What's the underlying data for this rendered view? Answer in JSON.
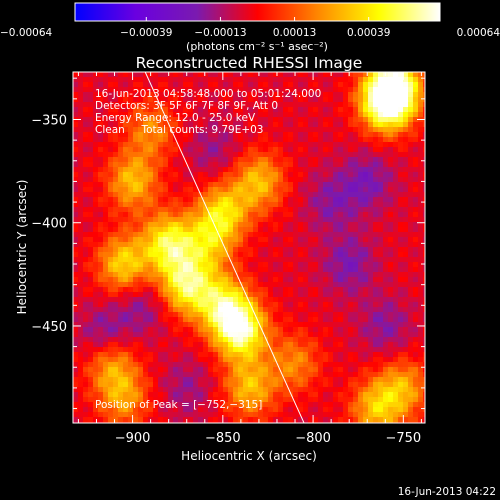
{
  "chart_data": {
    "type": "heatmap",
    "title": "Reconstructed RHESSI Image",
    "xlabel": "Heliocentric X (arcsec)",
    "ylabel": "Heliocentric Y (arcsec)",
    "xlim": [
      -933,
      -738
    ],
    "ylim": [
      -497,
      -327
    ],
    "x_ticks": [
      {
        "value": -900,
        "label": "−900"
      },
      {
        "value": -850,
        "label": "−850"
      },
      {
        "value": -800,
        "label": "−800"
      },
      {
        "value": -750,
        "label": "−750"
      }
    ],
    "y_ticks": [
      {
        "value": -350,
        "label": "−350"
      },
      {
        "value": -400,
        "label": "−400"
      },
      {
        "value": -450,
        "label": "−450"
      }
    ],
    "colorbar": {
      "range": [
        -0.00064,
        0.00064
      ],
      "ticks": [
        {
          "value": -0.00064,
          "label": "−0.00064"
        },
        {
          "value": -0.00039,
          "label": "−0.00039"
        },
        {
          "value": -0.00013,
          "label": "−0.00013"
        },
        {
          "value": 0.00013,
          "label": "0.00013"
        },
        {
          "value": 0.00039,
          "label": "0.00039"
        },
        {
          "value": 0.00064,
          "label": "0.00064"
        }
      ],
      "unit_label": "(photons cm⁻² s⁻¹ asec⁻²)",
      "colors": [
        "#0000ff",
        "#6a00e0",
        "#7a1ab0",
        "#ff0000",
        "#ff8800",
        "#ffff00",
        "#ffffff"
      ]
    },
    "annotations": [
      "16-Jun-2013 04:58:48.000 to 05:01:24.000",
      "Detectors: 3F 5F 6F 7F 8F 9F, Att 0",
      "Energy Range: 12.0 - 25.0 keV",
      "Clean     Total counts: 9.79E+03",
      "Position of Peak = [−752,−315]"
    ],
    "limb_line": {
      "from": [
        -893,
        -327
      ],
      "to": [
        -805,
        -497
      ]
    },
    "blobs": [
      {
        "x": -755,
        "y": -335,
        "value": 0.00064
      },
      {
        "x": -760,
        "y": -342,
        "value": 0.00055
      },
      {
        "x": -880,
        "y": -410,
        "value": 0.0005
      },
      {
        "x": -870,
        "y": -430,
        "value": 0.00052
      },
      {
        "x": -900,
        "y": -380,
        "value": 0.00035
      },
      {
        "x": -905,
        "y": -420,
        "value": 0.0004
      },
      {
        "x": -840,
        "y": -452,
        "value": 0.0006
      },
      {
        "x": -850,
        "y": -440,
        "value": 0.00045
      },
      {
        "x": -835,
        "y": -480,
        "value": 0.00035
      },
      {
        "x": -850,
        "y": -395,
        "value": 0.0004
      },
      {
        "x": -858,
        "y": -410,
        "value": 0.0003
      },
      {
        "x": -830,
        "y": -380,
        "value": 0.00035
      },
      {
        "x": -912,
        "y": -468,
        "value": 0.0003
      },
      {
        "x": -905,
        "y": -485,
        "value": 0.00028
      },
      {
        "x": -890,
        "y": -355,
        "value": 0.00025
      },
      {
        "x": -765,
        "y": -490,
        "value": 0.00035
      },
      {
        "x": -750,
        "y": -480,
        "value": 0.0003
      },
      {
        "x": -810,
        "y": -468,
        "value": 0.00025
      },
      {
        "x": -780,
        "y": -420,
        "value": -0.00018
      },
      {
        "x": -790,
        "y": -390,
        "value": -0.00015
      },
      {
        "x": -770,
        "y": -380,
        "value": -0.00018
      },
      {
        "x": -760,
        "y": -450,
        "value": -0.00015
      },
      {
        "x": -895,
        "y": -440,
        "value": -0.00015
      },
      {
        "x": -915,
        "y": -455,
        "value": -0.0002
      },
      {
        "x": -870,
        "y": -480,
        "value": -0.00012
      },
      {
        "x": -855,
        "y": -365,
        "value": -0.00012
      }
    ]
  },
  "footer": {
    "timestamp": "16-Jun-2013 04:22"
  }
}
